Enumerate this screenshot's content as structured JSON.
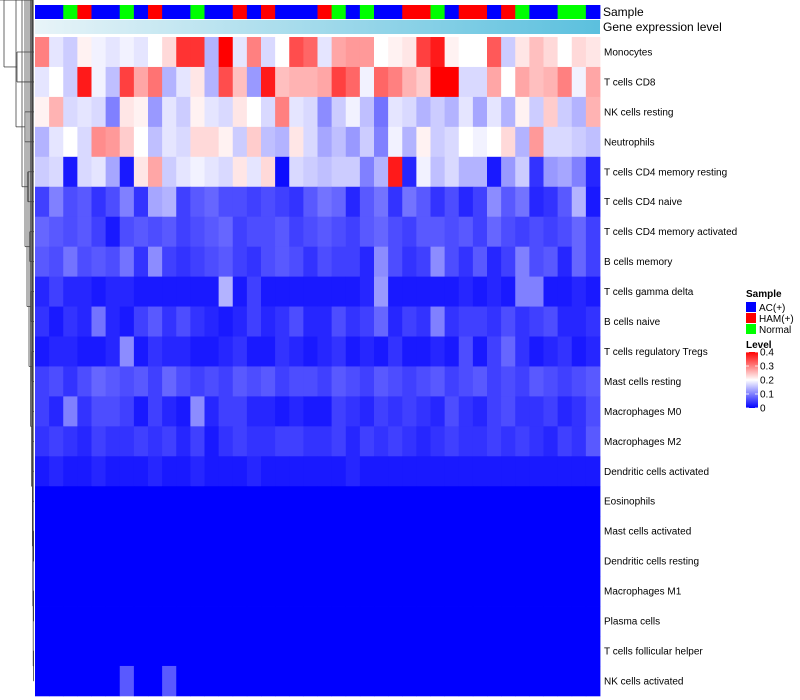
{
  "chart_data": {
    "type": "heatmap",
    "title": "",
    "annotation_labels": [
      "Sample",
      "Gene expression level"
    ],
    "colors": {
      "AC(+)": "#0000ff",
      "HAM(+)": "#ff0000",
      "Normal": "#00ff00",
      "low": "#0000ff",
      "mid": "#ffffff",
      "high": "#ff0000",
      "gene_bar_left": "#e8f4f8",
      "gene_bar_right": "#5bc0de"
    },
    "sample_groups": [
      "AC(+)",
      "AC(+)",
      "Normal",
      "HAM(+)",
      "AC(+)",
      "AC(+)",
      "Normal",
      "AC(+)",
      "HAM(+)",
      "AC(+)",
      "AC(+)",
      "Normal",
      "AC(+)",
      "AC(+)",
      "HAM(+)",
      "AC(+)",
      "HAM(+)",
      "AC(+)",
      "AC(+)",
      "AC(+)",
      "HAM(+)",
      "Normal",
      "AC(+)",
      "Normal",
      "AC(+)",
      "AC(+)",
      "HAM(+)",
      "HAM(+)",
      "Normal",
      "AC(+)",
      "HAM(+)",
      "HAM(+)",
      "AC(+)",
      "HAM(+)",
      "Normal",
      "AC(+)",
      "AC(+)",
      "Normal",
      "Normal",
      "AC(+)"
    ],
    "rows": [
      {
        "name": "Monocytes",
        "values": [
          0.3,
          0.18,
          0.16,
          0.21,
          0.19,
          0.18,
          0.19,
          0.18,
          0.2,
          0.23,
          0.36,
          0.36,
          0.14,
          0.4,
          0.18,
          0.3,
          0.17,
          0.2,
          0.34,
          0.32,
          0.18,
          0.27,
          0.28,
          0.28,
          0.2,
          0.21,
          0.22,
          0.35,
          0.38,
          0.21,
          0.2,
          0.2,
          0.33,
          0.16,
          0.22,
          0.25,
          0.23,
          0.2,
          0.23,
          0.22
        ]
      },
      {
        "name": "T cells CD8",
        "values": [
          0.18,
          0.2,
          0.16,
          0.38,
          0.19,
          0.15,
          0.35,
          0.27,
          0.31,
          0.14,
          0.18,
          0.22,
          0.14,
          0.34,
          0.25,
          0.12,
          0.38,
          0.25,
          0.26,
          0.26,
          0.27,
          0.35,
          0.32,
          0.19,
          0.32,
          0.3,
          0.26,
          0.24,
          0.4,
          0.4,
          0.17,
          0.17,
          0.27,
          0.2,
          0.27,
          0.25,
          0.26,
          0.3,
          0.19,
          0.27
        ]
      },
      {
        "name": "NK cells resting",
        "values": [
          0.21,
          0.26,
          0.17,
          0.18,
          0.17,
          0.1,
          0.22,
          0.21,
          0.12,
          0.18,
          0.16,
          0.21,
          0.18,
          0.17,
          0.22,
          0.2,
          0.17,
          0.3,
          0.18,
          0.17,
          0.11,
          0.16,
          0.19,
          0.15,
          0.09,
          0.18,
          0.17,
          0.14,
          0.16,
          0.14,
          0.18,
          0.13,
          0.18,
          0.14,
          0.21,
          0.16,
          0.24,
          0.16,
          0.14,
          0.26
        ]
      },
      {
        "name": "Neutrophils",
        "values": [
          0.14,
          0.18,
          0.2,
          0.17,
          0.29,
          0.28,
          0.24,
          0.2,
          0.15,
          0.18,
          0.17,
          0.23,
          0.23,
          0.21,
          0.16,
          0.24,
          0.15,
          0.14,
          0.22,
          0.17,
          0.13,
          0.15,
          0.12,
          0.16,
          0.1,
          0.19,
          0.14,
          0.21,
          0.16,
          0.17,
          0.2,
          0.19,
          0.2,
          0.23,
          0.14,
          0.28,
          0.17,
          0.17,
          0.16,
          0.15
        ]
      },
      {
        "name": "T cells CD4 memory resting",
        "values": [
          0.16,
          0.17,
          0.02,
          0.17,
          0.18,
          0.13,
          0.02,
          0.22,
          0.27,
          0.16,
          0.18,
          0.19,
          0.18,
          0.17,
          0.22,
          0.18,
          0.23,
          0.01,
          0.17,
          0.16,
          0.15,
          0.16,
          0.16,
          0.1,
          0.14,
          0.38,
          0.03,
          0.19,
          0.15,
          0.17,
          0.14,
          0.14,
          0.02,
          0.12,
          0.16,
          0.04,
          0.12,
          0.13,
          0.1,
          0.03
        ]
      },
      {
        "name": "T cells CD4 naive",
        "values": [
          0.05,
          0.1,
          0.06,
          0.07,
          0.04,
          0.06,
          0.1,
          0.04,
          0.13,
          0.14,
          0.05,
          0.07,
          0.08,
          0.06,
          0.06,
          0.05,
          0.06,
          0.05,
          0.04,
          0.07,
          0.09,
          0.08,
          0.03,
          0.07,
          0.09,
          0.04,
          0.09,
          0.07,
          0.04,
          0.06,
          0.03,
          0.05,
          0.11,
          0.07,
          0.09,
          0.03,
          0.04,
          0.07,
          0.14,
          0.02
        ]
      },
      {
        "name": "T cells CD4 memory activated",
        "values": [
          0.08,
          0.07,
          0.06,
          0.07,
          0.05,
          0.02,
          0.06,
          0.07,
          0.06,
          0.07,
          0.05,
          0.06,
          0.07,
          0.08,
          0.05,
          0.06,
          0.06,
          0.07,
          0.05,
          0.06,
          0.07,
          0.06,
          0.05,
          0.07,
          0.08,
          0.06,
          0.05,
          0.07,
          0.07,
          0.06,
          0.07,
          0.05,
          0.08,
          0.06,
          0.05,
          0.06,
          0.05,
          0.06,
          0.08,
          0.05
        ]
      },
      {
        "name": "B cells memory",
        "values": [
          0.07,
          0.06,
          0.09,
          0.06,
          0.07,
          0.06,
          0.09,
          0.04,
          0.11,
          0.05,
          0.04,
          0.05,
          0.06,
          0.07,
          0.05,
          0.04,
          0.06,
          0.07,
          0.06,
          0.04,
          0.06,
          0.05,
          0.05,
          0.03,
          0.11,
          0.06,
          0.04,
          0.05,
          0.11,
          0.06,
          0.04,
          0.07,
          0.03,
          0.05,
          0.1,
          0.06,
          0.07,
          0.03,
          0.08,
          0.05
        ]
      },
      {
        "name": "T cells gamma delta",
        "values": [
          0.03,
          0.05,
          0.03,
          0.03,
          0.02,
          0.03,
          0.03,
          0.02,
          0.02,
          0.02,
          0.02,
          0.02,
          0.02,
          0.14,
          0.02,
          0.05,
          0.02,
          0.02,
          0.02,
          0.02,
          0.02,
          0.02,
          0.02,
          0.03,
          0.12,
          0.02,
          0.02,
          0.02,
          0.02,
          0.02,
          0.03,
          0.02,
          0.03,
          0.02,
          0.1,
          0.1,
          0.02,
          0.02,
          0.03,
          0.02
        ]
      },
      {
        "name": "B cells naive",
        "values": [
          0.04,
          0.02,
          0.04,
          0.03,
          0.09,
          0.03,
          0.02,
          0.05,
          0.07,
          0.04,
          0.06,
          0.04,
          0.03,
          0.02,
          0.03,
          0.05,
          0.03,
          0.04,
          0.06,
          0.03,
          0.03,
          0.06,
          0.04,
          0.05,
          0.08,
          0.03,
          0.05,
          0.04,
          0.1,
          0.04,
          0.05,
          0.05,
          0.04,
          0.06,
          0.04,
          0.05,
          0.06,
          0.03,
          0.03,
          0.04
        ]
      },
      {
        "name": "T cells regulatory  Tregs",
        "values": [
          0.02,
          0.03,
          0.03,
          0.02,
          0.02,
          0.03,
          0.11,
          0.02,
          0.04,
          0.03,
          0.03,
          0.02,
          0.02,
          0.03,
          0.04,
          0.02,
          0.02,
          0.04,
          0.03,
          0.02,
          0.03,
          0.04,
          0.02,
          0.03,
          0.02,
          0.04,
          0.02,
          0.02,
          0.03,
          0.02,
          0.06,
          0.02,
          0.05,
          0.08,
          0.04,
          0.02,
          0.03,
          0.04,
          0.02,
          0.03
        ]
      },
      {
        "name": "Mast cells resting",
        "values": [
          0.05,
          0.06,
          0.04,
          0.06,
          0.08,
          0.07,
          0.06,
          0.07,
          0.05,
          0.08,
          0.06,
          0.05,
          0.06,
          0.05,
          0.07,
          0.06,
          0.07,
          0.05,
          0.06,
          0.06,
          0.05,
          0.07,
          0.06,
          0.05,
          0.07,
          0.06,
          0.05,
          0.06,
          0.07,
          0.05,
          0.06,
          0.07,
          0.05,
          0.06,
          0.05,
          0.07,
          0.06,
          0.05,
          0.06,
          0.07
        ]
      },
      {
        "name": "Macrophages M0",
        "values": [
          0.05,
          0.03,
          0.1,
          0.04,
          0.06,
          0.06,
          0.05,
          0.02,
          0.05,
          0.03,
          0.02,
          0.11,
          0.03,
          0.05,
          0.05,
          0.03,
          0.03,
          0.02,
          0.03,
          0.02,
          0.02,
          0.05,
          0.04,
          0.03,
          0.05,
          0.04,
          0.05,
          0.04,
          0.03,
          0.06,
          0.04,
          0.03,
          0.05,
          0.06,
          0.04,
          0.04,
          0.05,
          0.03,
          0.04,
          0.06
        ]
      },
      {
        "name": "Macrophages M2",
        "values": [
          0.04,
          0.05,
          0.04,
          0.03,
          0.05,
          0.04,
          0.04,
          0.05,
          0.04,
          0.05,
          0.03,
          0.05,
          0.02,
          0.04,
          0.05,
          0.04,
          0.04,
          0.05,
          0.05,
          0.04,
          0.04,
          0.05,
          0.03,
          0.05,
          0.04,
          0.05,
          0.04,
          0.03,
          0.04,
          0.05,
          0.04,
          0.04,
          0.05,
          0.04,
          0.05,
          0.04,
          0.03,
          0.05,
          0.04,
          0.07
        ]
      },
      {
        "name": "Dendritic cells activated",
        "values": [
          0.02,
          0.03,
          0.02,
          0.02,
          0.03,
          0.02,
          0.02,
          0.02,
          0.03,
          0.02,
          0.02,
          0.03,
          0.02,
          0.02,
          0.02,
          0.03,
          0.02,
          0.02,
          0.02,
          0.02,
          0.02,
          0.02,
          0.03,
          0.02,
          0.02,
          0.02,
          0.02,
          0.02,
          0.02,
          0.02,
          0.02,
          0.02,
          0.02,
          0.02,
          0.02,
          0.02,
          0.02,
          0.02,
          0.02,
          0.02
        ]
      },
      {
        "name": "Eosinophils",
        "values": [
          0.0,
          0.0,
          0.0,
          0.0,
          0.0,
          0.0,
          0.0,
          0.0,
          0.0,
          0.0,
          0.0,
          0.0,
          0.0,
          0.0,
          0.0,
          0.0,
          0.0,
          0.0,
          0.0,
          0.0,
          0.0,
          0.0,
          0.0,
          0.0,
          0.0,
          0.0,
          0.0,
          0.0,
          0.0,
          0.0,
          0.0,
          0.0,
          0.0,
          0.0,
          0.0,
          0.0,
          0.0,
          0.0,
          0.0,
          0.0
        ]
      },
      {
        "name": "Mast cells activated",
        "values": [
          0.0,
          0.0,
          0.0,
          0.0,
          0.0,
          0.0,
          0.0,
          0.0,
          0.0,
          0.0,
          0.0,
          0.0,
          0.0,
          0.0,
          0.0,
          0.0,
          0.0,
          0.0,
          0.0,
          0.0,
          0.0,
          0.0,
          0.0,
          0.0,
          0.0,
          0.0,
          0.0,
          0.0,
          0.0,
          0.0,
          0.0,
          0.0,
          0.0,
          0.0,
          0.0,
          0.0,
          0.0,
          0.0,
          0.0,
          0.0
        ]
      },
      {
        "name": "Dendritic cells resting",
        "values": [
          0.0,
          0.0,
          0.0,
          0.0,
          0.0,
          0.0,
          0.0,
          0.0,
          0.0,
          0.0,
          0.0,
          0.0,
          0.0,
          0.0,
          0.0,
          0.0,
          0.0,
          0.0,
          0.0,
          0.0,
          0.0,
          0.0,
          0.0,
          0.0,
          0.0,
          0.0,
          0.0,
          0.0,
          0.0,
          0.0,
          0.0,
          0.0,
          0.0,
          0.0,
          0.0,
          0.0,
          0.0,
          0.0,
          0.0,
          0.0
        ]
      },
      {
        "name": "Macrophages M1",
        "values": [
          0.0,
          0.0,
          0.0,
          0.0,
          0.0,
          0.0,
          0.0,
          0.0,
          0.0,
          0.0,
          0.0,
          0.0,
          0.0,
          0.0,
          0.0,
          0.0,
          0.0,
          0.0,
          0.0,
          0.0,
          0.0,
          0.0,
          0.0,
          0.0,
          0.0,
          0.0,
          0.0,
          0.0,
          0.0,
          0.0,
          0.0,
          0.0,
          0.0,
          0.0,
          0.0,
          0.0,
          0.0,
          0.0,
          0.0,
          0.0
        ]
      },
      {
        "name": "Plasma cells",
        "values": [
          0.0,
          0.0,
          0.0,
          0.0,
          0.0,
          0.0,
          0.0,
          0.0,
          0.0,
          0.0,
          0.0,
          0.0,
          0.0,
          0.0,
          0.0,
          0.0,
          0.0,
          0.0,
          0.0,
          0.0,
          0.0,
          0.0,
          0.0,
          0.0,
          0.0,
          0.0,
          0.0,
          0.0,
          0.0,
          0.0,
          0.0,
          0.0,
          0.0,
          0.0,
          0.0,
          0.0,
          0.0,
          0.0,
          0.0,
          0.0
        ]
      },
      {
        "name": "T cells follicular helper",
        "values": [
          0.0,
          0.0,
          0.0,
          0.0,
          0.0,
          0.0,
          0.0,
          0.0,
          0.0,
          0.0,
          0.0,
          0.0,
          0.0,
          0.0,
          0.0,
          0.0,
          0.0,
          0.0,
          0.0,
          0.0,
          0.0,
          0.0,
          0.0,
          0.0,
          0.0,
          0.0,
          0.0,
          0.0,
          0.0,
          0.0,
          0.0,
          0.0,
          0.0,
          0.0,
          0.0,
          0.0,
          0.0,
          0.0,
          0.0,
          0.0
        ]
      },
      {
        "name": "NK cells activated",
        "values": [
          0.0,
          0.0,
          0.0,
          0.0,
          0.0,
          0.0,
          0.07,
          0.0,
          0.0,
          0.07,
          0.0,
          0.0,
          0.0,
          0.0,
          0.0,
          0.0,
          0.0,
          0.0,
          0.0,
          0.0,
          0.0,
          0.0,
          0.0,
          0.0,
          0.0,
          0.0,
          0.0,
          0.0,
          0.0,
          0.0,
          0.0,
          0.0,
          0.0,
          0.0,
          0.0,
          0.0,
          0.0,
          0.0,
          0.0,
          0.0
        ]
      }
    ],
    "scale": {
      "min": 0,
      "max": 0.4,
      "ticks": [
        0.4,
        0.3,
        0.2,
        0.1,
        0
      ],
      "tick_labels": [
        "0.4",
        "0.3",
        "0.2",
        "0.1",
        "0"
      ]
    },
    "legend": {
      "sample_title": "Sample",
      "sample_entries": [
        "AC(+)",
        "HAM(+)",
        "Normal"
      ],
      "level_title": "Level",
      "placement": "right"
    }
  }
}
